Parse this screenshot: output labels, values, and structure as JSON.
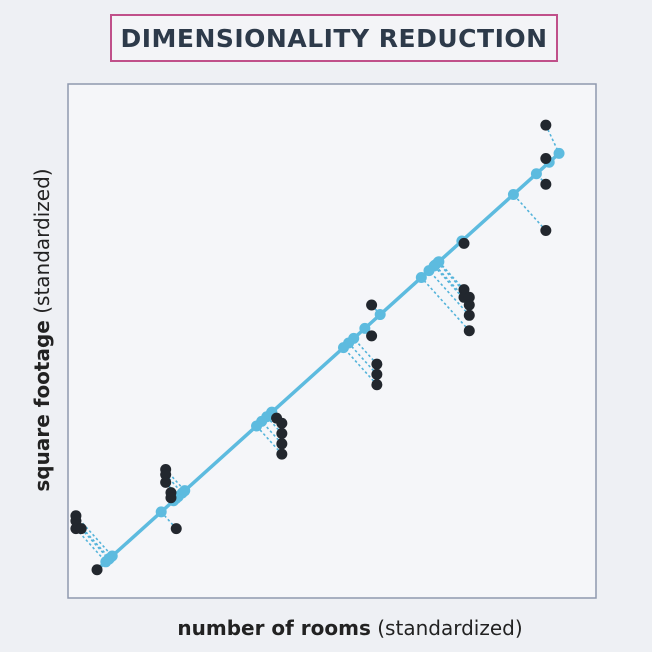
{
  "title": "DIMENSIONALITY REDUCTION",
  "chart_data": {
    "type": "scatter",
    "xlabel": {
      "main": "number of rooms",
      "qualifier": "(standardized)"
    },
    "ylabel": {
      "main": "square footage",
      "qualifier": "(standardized)"
    },
    "xlim": [
      0,
      100
    ],
    "ylim": [
      0,
      100
    ],
    "grid": false,
    "line": {
      "x1": 5.5,
      "y1": 5.5,
      "x2": 93,
      "y2": 86.5
    },
    "series": [
      {
        "x": [
          1.5,
          1.5,
          1.5,
          2.5,
          18.5,
          18.5,
          18.5,
          19.5,
          19.5,
          20.5,
          39.5,
          40.5,
          40.5,
          40.5,
          40.5,
          57.5,
          57.5,
          58.5,
          58.5,
          58.5,
          75,
          75,
          75,
          76,
          76,
          76,
          76,
          90.5,
          90.5,
          90.5,
          90.5,
          5.5
        ],
        "y": [
          16,
          15,
          13.5,
          13.5,
          25,
          24,
          22.5,
          20.5,
          19.5,
          13.5,
          35,
          34,
          32,
          30,
          28,
          57,
          51,
          45.5,
          43.5,
          41.5,
          69,
          60,
          58.5,
          58.5,
          57,
          55,
          52,
          92,
          85.5,
          80.5,
          71.5,
          5.5
        ]
      }
    ]
  },
  "colors": {
    "background": "#eef0f4",
    "plot_border": "#8f99ae",
    "title_border": "#c0508a",
    "line": "#5dbbdf",
    "projection": "#53b3da",
    "point": "#22272e"
  }
}
